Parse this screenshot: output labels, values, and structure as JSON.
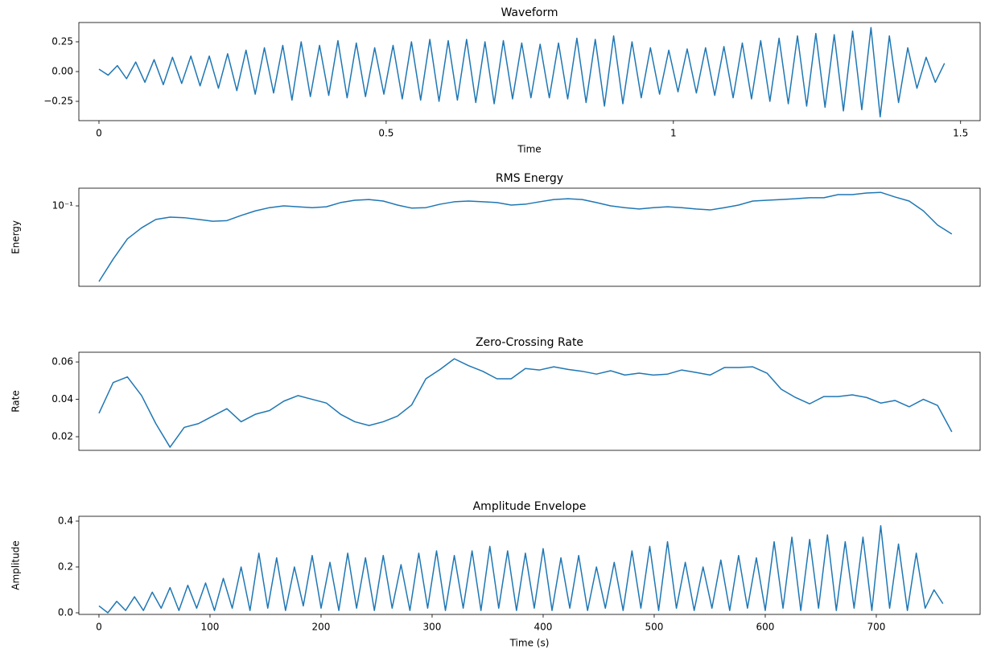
{
  "chart_data": [
    {
      "type": "line",
      "title": "Waveform",
      "xlabel": "Time",
      "color": "#1f77b4",
      "x": [
        0,
        0.016,
        0.032,
        0.048,
        0.064,
        0.08,
        0.096,
        0.112,
        0.128,
        0.144,
        0.16,
        0.176,
        0.192,
        0.208,
        0.224,
        0.24,
        0.256,
        0.272,
        0.288,
        0.304,
        0.32,
        0.336,
        0.352,
        0.368,
        0.384,
        0.4,
        0.416,
        0.432,
        0.448,
        0.464,
        0.48,
        0.496,
        0.512,
        0.528,
        0.544,
        0.56,
        0.576,
        0.592,
        0.608,
        0.624,
        0.64,
        0.656,
        0.672,
        0.688,
        0.704,
        0.72,
        0.736,
        0.752,
        0.768,
        0.784,
        0.8,
        0.816,
        0.832,
        0.848,
        0.864,
        0.88,
        0.896,
        0.912,
        0.928,
        0.944,
        0.96,
        0.976,
        0.992,
        1.008,
        1.024,
        1.04,
        1.056,
        1.072,
        1.088,
        1.104,
        1.12,
        1.136,
        1.152,
        1.168,
        1.184,
        1.2,
        1.216,
        1.232,
        1.248,
        1.264,
        1.28,
        1.296,
        1.312,
        1.328,
        1.344,
        1.36,
        1.376,
        1.392,
        1.408,
        1.424,
        1.44,
        1.456,
        1.472
      ],
      "values": [
        0.02,
        -0.03,
        0.05,
        -0.06,
        0.08,
        -0.09,
        0.1,
        -0.11,
        0.12,
        -0.1,
        0.13,
        -0.12,
        0.13,
        -0.14,
        0.15,
        -0.16,
        0.18,
        -0.19,
        0.2,
        -0.18,
        0.22,
        -0.24,
        0.25,
        -0.21,
        0.22,
        -0.2,
        0.26,
        -0.22,
        0.24,
        -0.21,
        0.2,
        -0.19,
        0.22,
        -0.23,
        0.25,
        -0.24,
        0.27,
        -0.25,
        0.26,
        -0.24,
        0.27,
        -0.26,
        0.25,
        -0.27,
        0.26,
        -0.23,
        0.24,
        -0.22,
        0.23,
        -0.22,
        0.24,
        -0.23,
        0.28,
        -0.26,
        0.27,
        -0.29,
        0.3,
        -0.27,
        0.25,
        -0.22,
        0.2,
        -0.19,
        0.18,
        -0.17,
        0.19,
        -0.18,
        0.2,
        -0.2,
        0.21,
        -0.22,
        0.24,
        -0.23,
        0.26,
        -0.25,
        0.28,
        -0.27,
        0.3,
        -0.29,
        0.32,
        -0.3,
        0.31,
        -0.33,
        0.34,
        -0.32,
        0.37,
        -0.38,
        0.3,
        -0.26,
        0.2,
        -0.14,
        0.12,
        -0.09,
        0.07
      ],
      "xlim": [
        -0.035,
        1.534
      ],
      "ylim": [
        -0.412,
        0.412
      ],
      "xticks": [
        0,
        0.5,
        1,
        1.5
      ],
      "yticks": [
        {
          "value": -0.25,
          "label": "−0.25"
        },
        {
          "value": 0,
          "label": "0.00"
        },
        {
          "value": 0.25,
          "label": "0.25"
        }
      ]
    },
    {
      "type": "line",
      "title": "RMS Energy",
      "ylabel": "Energy",
      "color": "#1f77b4",
      "log_y": true,
      "x": [
        0,
        12.8,
        25.6,
        38.4,
        51.2,
        64,
        76.8,
        89.6,
        102.4,
        115.2,
        128,
        140.8,
        153.6,
        166.4,
        179.2,
        192,
        204.8,
        217.6,
        230.4,
        243.2,
        256,
        268.8,
        281.6,
        294.4,
        307.2,
        320,
        332.8,
        345.6,
        358.4,
        371.2,
        384,
        396.8,
        409.6,
        422.4,
        435.2,
        448,
        460.8,
        473.6,
        486.4,
        499.2,
        512,
        524.8,
        537.6,
        550.4,
        563.2,
        576,
        588.8,
        601.6,
        614.4,
        627.2,
        640,
        652.8,
        665.6,
        678.4,
        691.2,
        704,
        716.8,
        729.6,
        742.4,
        755.2,
        768
      ],
      "values": [
        0.0172,
        0.029,
        0.0464,
        0.06,
        0.073,
        0.077,
        0.076,
        0.073,
        0.07,
        0.071,
        0.08,
        0.089,
        0.096,
        0.1,
        0.098,
        0.096,
        0.098,
        0.108,
        0.114,
        0.116,
        0.112,
        0.102,
        0.095,
        0.096,
        0.104,
        0.11,
        0.112,
        0.11,
        0.108,
        0.102,
        0.104,
        0.11,
        0.116,
        0.118,
        0.116,
        0.108,
        0.1,
        0.096,
        0.093,
        0.096,
        0.098,
        0.096,
        0.093,
        0.091,
        0.096,
        0.102,
        0.112,
        0.114,
        0.116,
        0.118,
        0.121,
        0.121,
        0.13,
        0.13,
        0.135,
        0.137,
        0.123,
        0.112,
        0.089,
        0.064,
        0.052
      ],
      "xlim": [
        -18.1,
        793.5
      ],
      "ylim": [
        0.0154,
        0.151
      ],
      "yticks": [
        {
          "value": 0.1,
          "label": "10⁻¹"
        }
      ]
    },
    {
      "type": "line",
      "title": "Zero-Crossing Rate",
      "ylabel": "Rate",
      "color": "#1f77b4",
      "x": [
        0,
        12.8,
        25.6,
        38.4,
        51.2,
        64,
        76.8,
        89.6,
        102.4,
        115.2,
        128,
        140.8,
        153.6,
        166.4,
        179.2,
        192,
        204.8,
        217.6,
        230.4,
        243.2,
        256,
        268.8,
        281.6,
        294.4,
        307.2,
        320,
        332.8,
        345.6,
        358.4,
        371.2,
        384,
        396.8,
        409.6,
        422.4,
        435.2,
        448,
        460.8,
        473.6,
        486.4,
        499.2,
        512,
        524.8,
        537.6,
        550.4,
        563.2,
        576,
        588.8,
        601.6,
        614.4,
        627.2,
        640,
        652.8,
        665.6,
        678.4,
        691.2,
        704,
        716.8,
        729.6,
        742.4,
        755.2,
        768
      ],
      "values": [
        0.0325,
        0.049,
        0.052,
        0.042,
        0.027,
        0.0144,
        0.025,
        0.027,
        0.031,
        0.035,
        0.028,
        0.032,
        0.034,
        0.039,
        0.042,
        0.04,
        0.038,
        0.032,
        0.028,
        0.026,
        0.028,
        0.031,
        0.037,
        0.051,
        0.056,
        0.0617,
        0.058,
        0.055,
        0.051,
        0.051,
        0.0565,
        0.0557,
        0.0574,
        0.056,
        0.055,
        0.0535,
        0.0553,
        0.053,
        0.054,
        0.053,
        0.0535,
        0.0557,
        0.0544,
        0.053,
        0.057,
        0.057,
        0.0574,
        0.054,
        0.0454,
        0.041,
        0.0376,
        0.0415,
        0.0415,
        0.0424,
        0.041,
        0.038,
        0.0394,
        0.036,
        0.04,
        0.0367,
        0.0226
      ],
      "xlim": [
        -18.1,
        793.5
      ],
      "ylim": [
        0.0127,
        0.0652
      ],
      "yticks": [
        0.02,
        0.04,
        0.06
      ]
    },
    {
      "type": "line",
      "title": "Amplitude Envelope",
      "ylabel": "Amplitude",
      "xlabel": "Time (s)",
      "color": "#1f77b4",
      "x": [
        0,
        8,
        16,
        24,
        32,
        40,
        48,
        56,
        64,
        72,
        80,
        88,
        96,
        104,
        112,
        120,
        128,
        136,
        144,
        152,
        160,
        168,
        176,
        184,
        192,
        200,
        208,
        216,
        224,
        232,
        240,
        248,
        256,
        264,
        272,
        280,
        288,
        296,
        304,
        312,
        320,
        328,
        336,
        344,
        352,
        360,
        368,
        376,
        384,
        392,
        400,
        408,
        416,
        424,
        432,
        440,
        448,
        456,
        464,
        472,
        480,
        488,
        496,
        504,
        512,
        520,
        528,
        536,
        544,
        552,
        560,
        568,
        576,
        584,
        592,
        600,
        608,
        616,
        624,
        632,
        640,
        648,
        656,
        664,
        672,
        680,
        688,
        696,
        704,
        712,
        720,
        728,
        736,
        744,
        752,
        760
      ],
      "values": [
        0.03,
        0.0,
        0.05,
        0.01,
        0.07,
        0.01,
        0.09,
        0.02,
        0.11,
        0.01,
        0.12,
        0.02,
        0.13,
        0.01,
        0.15,
        0.02,
        0.2,
        0.01,
        0.26,
        0.02,
        0.24,
        0.01,
        0.2,
        0.03,
        0.25,
        0.02,
        0.22,
        0.01,
        0.26,
        0.02,
        0.24,
        0.01,
        0.25,
        0.02,
        0.21,
        0.01,
        0.26,
        0.02,
        0.27,
        0.01,
        0.25,
        0.02,
        0.27,
        0.01,
        0.29,
        0.02,
        0.27,
        0.01,
        0.26,
        0.02,
        0.28,
        0.01,
        0.24,
        0.02,
        0.25,
        0.01,
        0.2,
        0.02,
        0.22,
        0.01,
        0.27,
        0.02,
        0.29,
        0.01,
        0.31,
        0.02,
        0.22,
        0.01,
        0.2,
        0.02,
        0.23,
        0.01,
        0.25,
        0.02,
        0.24,
        0.01,
        0.31,
        0.02,
        0.33,
        0.01,
        0.32,
        0.02,
        0.34,
        0.01,
        0.31,
        0.02,
        0.33,
        0.01,
        0.38,
        0.02,
        0.3,
        0.01,
        0.26,
        0.02,
        0.1,
        0.04
      ],
      "xlim": [
        -18.1,
        793.5
      ],
      "ylim": [
        -0.007,
        0.421
      ],
      "xticks": [
        0,
        100,
        200,
        300,
        400,
        500,
        600,
        700
      ],
      "yticks": [
        {
          "value": 0,
          "label": "0.0"
        },
        0.2,
        0.4
      ]
    }
  ]
}
